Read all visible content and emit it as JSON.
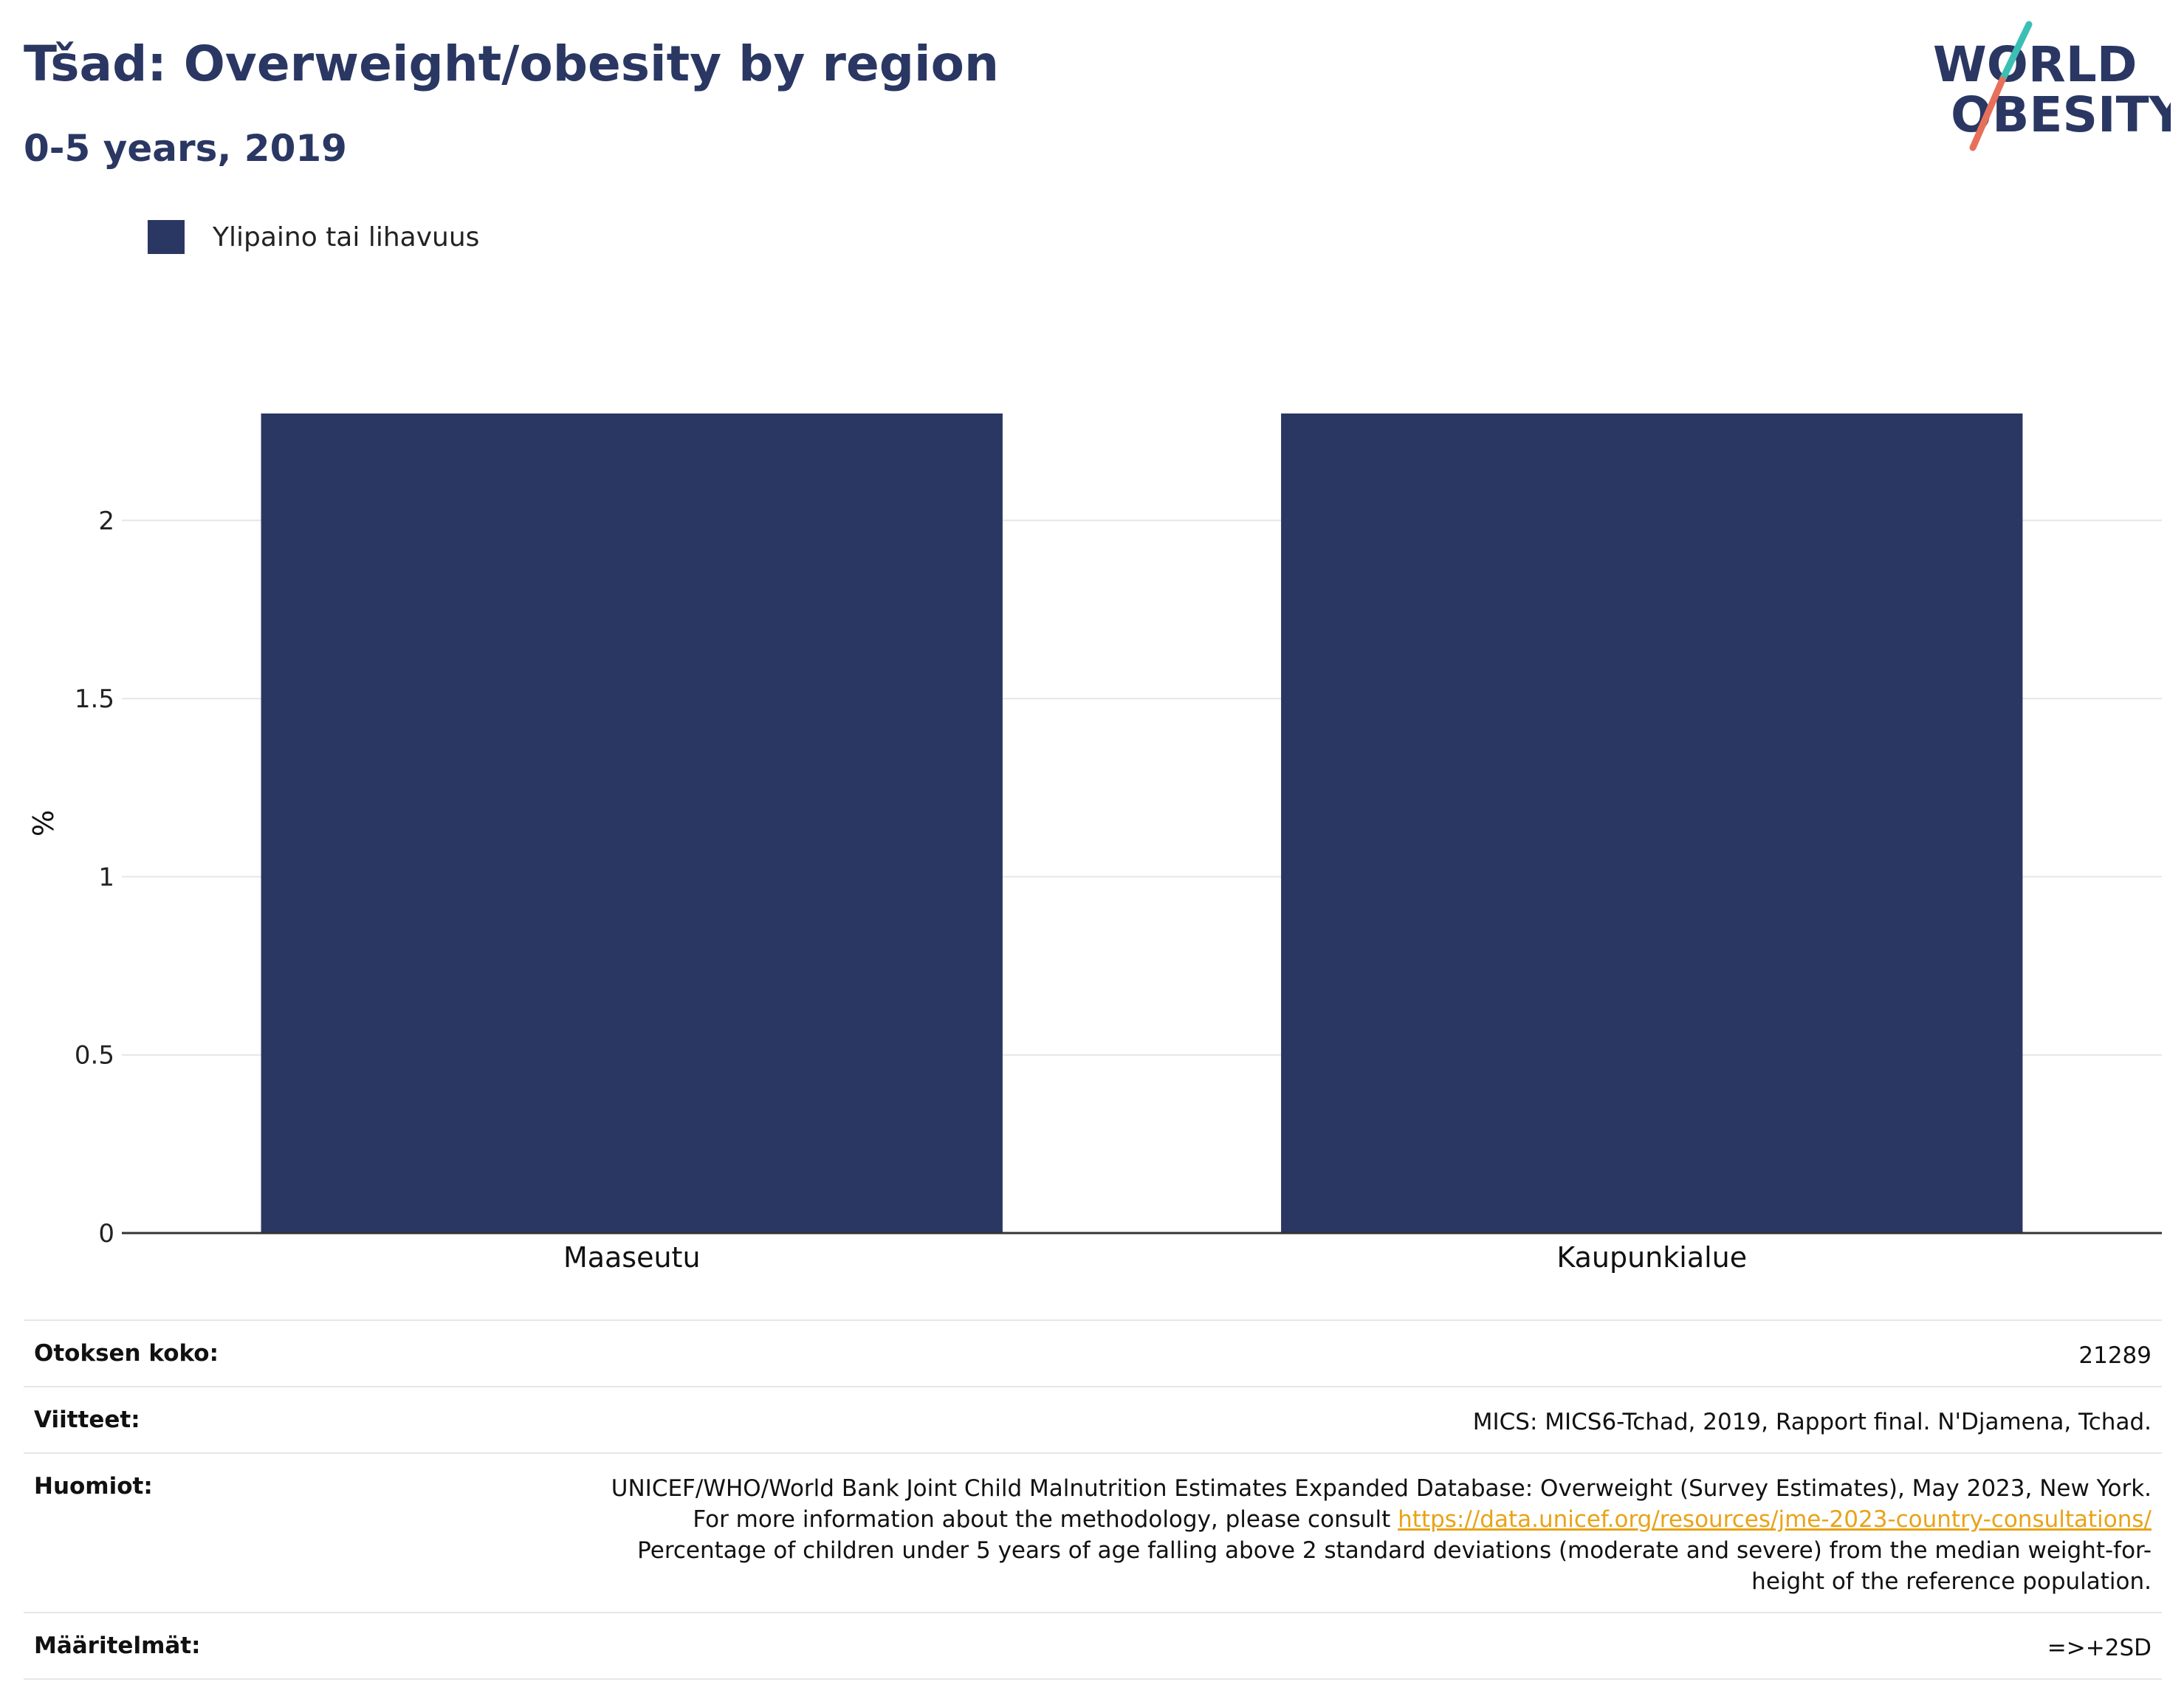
{
  "header": {
    "title": "Tšad: Overweight/obesity by region",
    "subtitle": "0-5 years, 2019"
  },
  "logo": {
    "line1": "WORLD",
    "line2": "OBESITY",
    "text_color": "#2a3763",
    "accent_teal": "#3bbfb5",
    "accent_coral": "#e8705a"
  },
  "colors": {
    "bar": "#2a3763",
    "grid": "#e6e6e6",
    "axis": "#333333",
    "link": "#e8a317"
  },
  "chart_data": {
    "type": "bar",
    "categories": [
      "Maaseutu",
      "Kaupunkialue"
    ],
    "series": [
      {
        "name": "Ylipaino tai lihavuus",
        "values": [
          2.3,
          2.3
        ]
      }
    ],
    "ylabel": "%",
    "xlabel": "",
    "ylim": [
      0,
      2.3
    ],
    "yticks": [
      0,
      0.5,
      1,
      1.5,
      2
    ],
    "ytick_labels": [
      "0",
      "0.5",
      "1",
      "1.5",
      "2"
    ],
    "grid": true,
    "legend_position": "top-left"
  },
  "info": {
    "sample_label": "Otoksen koko:",
    "sample_value": "21289",
    "refs_label": "Viitteet:",
    "refs_value": "MICS: MICS6-Tchad, 2019, Rapport final. N'Djamena, Tchad.",
    "notes_label": "Huomiot:",
    "notes_text1": "UNICEF/WHO/World Bank Joint Child Malnutrition Estimates Expanded Database: Overweight (Survey Estimates), May 2023, New York. For more information about the methodology, please consult",
    "notes_link": "https://data.unicef.org/resources/jme-2023-country-consultations/",
    "notes_text2": "Percentage of children under 5 years of age falling above 2 standard deviations (moderate and severe) from the median weight-for-height of the reference population.",
    "defs_label": "Määritelmät:",
    "defs_value": "=>+2SD"
  }
}
